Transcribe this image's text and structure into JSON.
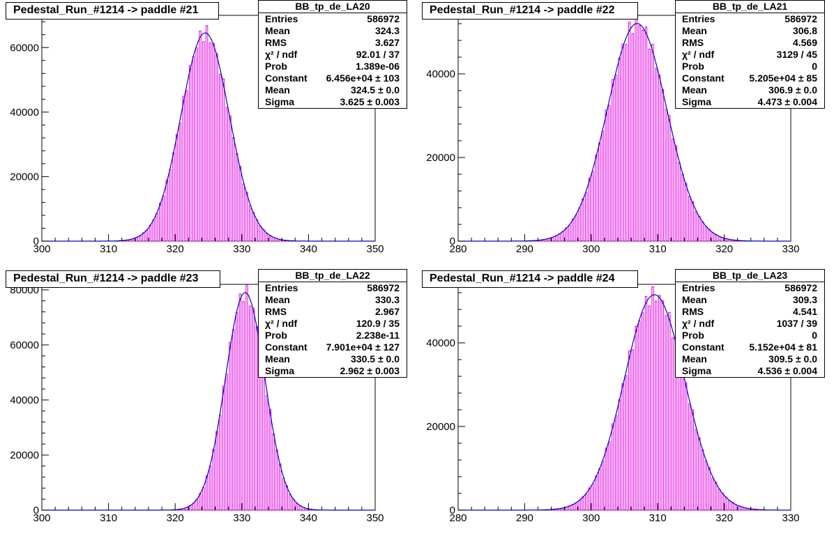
{
  "colors": {
    "histogram": "#e000e0",
    "fit": "#0000cc",
    "frame": "#000000"
  },
  "chart_data": [
    {
      "type": "bar",
      "title": "Pedestal_Run_#1214 -> paddle #21",
      "stats": {
        "name": "BB_tp_de_LA20",
        "rows": [
          {
            "label": "Entries",
            "value": "586972"
          },
          {
            "label": "Mean",
            "value": "324.3"
          },
          {
            "label": "RMS",
            "value": "3.627"
          },
          {
            "label": "χ² / ndf",
            "value": "92.01 / 37"
          },
          {
            "label": "Prob",
            "value": "1.389e-06"
          },
          {
            "label": "Constant",
            "value": "6.456e+04 ± 103"
          },
          {
            "label": "Mean",
            "value": "324.5 ± 0.0"
          },
          {
            "label": "Sigma",
            "value": "3.625 ± 0.003"
          }
        ]
      },
      "xlim": [
        300,
        350
      ],
      "ylim": [
        0,
        70000
      ],
      "xticks": [
        300,
        310,
        320,
        330,
        340,
        350
      ],
      "yticks": [
        0,
        20000,
        40000,
        60000
      ],
      "fit": {
        "constant": 64560,
        "mean": 324.5,
        "sigma": 3.625
      }
    },
    {
      "type": "bar",
      "title": "Pedestal_Run_#1214 -> paddle #22",
      "stats": {
        "name": "BB_tp_de_LA21",
        "rows": [
          {
            "label": "Entries",
            "value": "586972"
          },
          {
            "label": "Mean",
            "value": "306.8"
          },
          {
            "label": "RMS",
            "value": "4.569"
          },
          {
            "label": "χ² / ndf",
            "value": "3129 / 45"
          },
          {
            "label": "Prob",
            "value": "0"
          },
          {
            "label": "Constant",
            "value": "5.205e+04 ± 85"
          },
          {
            "label": "Mean",
            "value": "306.9 ± 0.0"
          },
          {
            "label": "Sigma",
            "value": "4.473 ± 0.004"
          }
        ]
      },
      "xlim": [
        280,
        330
      ],
      "ylim": [
        0,
        54000
      ],
      "xticks": [
        280,
        290,
        300,
        310,
        320,
        330
      ],
      "yticks": [
        0,
        20000,
        40000
      ],
      "fit": {
        "constant": 52050,
        "mean": 306.9,
        "sigma": 4.473
      }
    },
    {
      "type": "bar",
      "title": "Pedestal_Run_#1214 -> paddle #23",
      "stats": {
        "name": "BB_tp_de_LA22",
        "rows": [
          {
            "label": "Entries",
            "value": "586972"
          },
          {
            "label": "Mean",
            "value": "330.3"
          },
          {
            "label": "RMS",
            "value": "2.967"
          },
          {
            "label": "χ² / ndf",
            "value": "120.9 / 35"
          },
          {
            "label": "Prob",
            "value": "2.238e-11"
          },
          {
            "label": "Constant",
            "value": "7.901e+04 ± 127"
          },
          {
            "label": "Mean",
            "value": "330.5 ± 0.0"
          },
          {
            "label": "Sigma",
            "value": "2.962 ± 0.003"
          }
        ]
      },
      "xlim": [
        300,
        350
      ],
      "ylim": [
        0,
        82000
      ],
      "xticks": [
        300,
        310,
        320,
        330,
        340,
        350
      ],
      "yticks": [
        0,
        20000,
        40000,
        60000,
        80000
      ],
      "fit": {
        "constant": 79010,
        "mean": 330.5,
        "sigma": 2.962
      }
    },
    {
      "type": "bar",
      "title": "Pedestal_Run_#1214 -> paddle #24",
      "stats": {
        "name": "BB_tp_de_LA23",
        "rows": [
          {
            "label": "Entries",
            "value": "586972"
          },
          {
            "label": "Mean",
            "value": "309.3"
          },
          {
            "label": "RMS",
            "value": "4.541"
          },
          {
            "label": "χ² / ndf",
            "value": "1037 / 39"
          },
          {
            "label": "Prob",
            "value": "0"
          },
          {
            "label": "Constant",
            "value": "5.152e+04 ± 81"
          },
          {
            "label": "Mean",
            "value": "309.5 ± 0.0"
          },
          {
            "label": "Sigma",
            "value": "4.536 ± 0.004"
          }
        ]
      },
      "xlim": [
        280,
        330
      ],
      "ylim": [
        0,
        54000
      ],
      "xticks": [
        280,
        290,
        300,
        310,
        320,
        330
      ],
      "yticks": [
        0,
        20000,
        40000
      ],
      "fit": {
        "constant": 51520,
        "mean": 309.5,
        "sigma": 4.536
      }
    }
  ]
}
